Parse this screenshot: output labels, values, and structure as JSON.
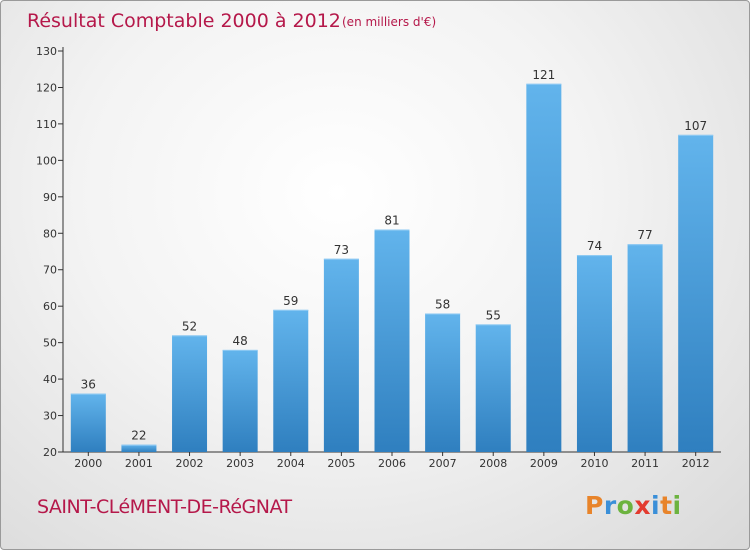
{
  "title": "Résultat Comptable 2000 à 2012",
  "subtitle": "(en milliers d'€)",
  "commune": "SAINT-CLéMENT-DE-RéGNAT",
  "brand": {
    "letters": [
      "P",
      "r",
      "o",
      "x",
      "i",
      "t",
      "i"
    ],
    "colors": [
      "#e8842a",
      "#3a8fd8",
      "#6cb33f",
      "#e33b2f",
      "#3a8fd8",
      "#e8842a",
      "#6cb33f"
    ]
  },
  "colors": {
    "bar_top": "#62b4ec",
    "bar_bottom": "#2f7fbf",
    "title": "#b5184a"
  },
  "chart_data": {
    "type": "bar",
    "categories": [
      "2000",
      "2001",
      "2002",
      "2003",
      "2004",
      "2005",
      "2006",
      "2007",
      "2008",
      "2009",
      "2010",
      "2011",
      "2012"
    ],
    "values": [
      36,
      22,
      52,
      48,
      59,
      73,
      81,
      58,
      55,
      121,
      74,
      77,
      107
    ],
    "title": "Résultat Comptable 2000 à 2012",
    "subtitle": "(en milliers d'€)",
    "xlabel": "",
    "ylabel": "",
    "ylim": [
      20,
      130
    ],
    "yticks": [
      20,
      30,
      40,
      50,
      60,
      70,
      80,
      90,
      100,
      110,
      120,
      130
    ],
    "grid": false,
    "legend": "none"
  }
}
